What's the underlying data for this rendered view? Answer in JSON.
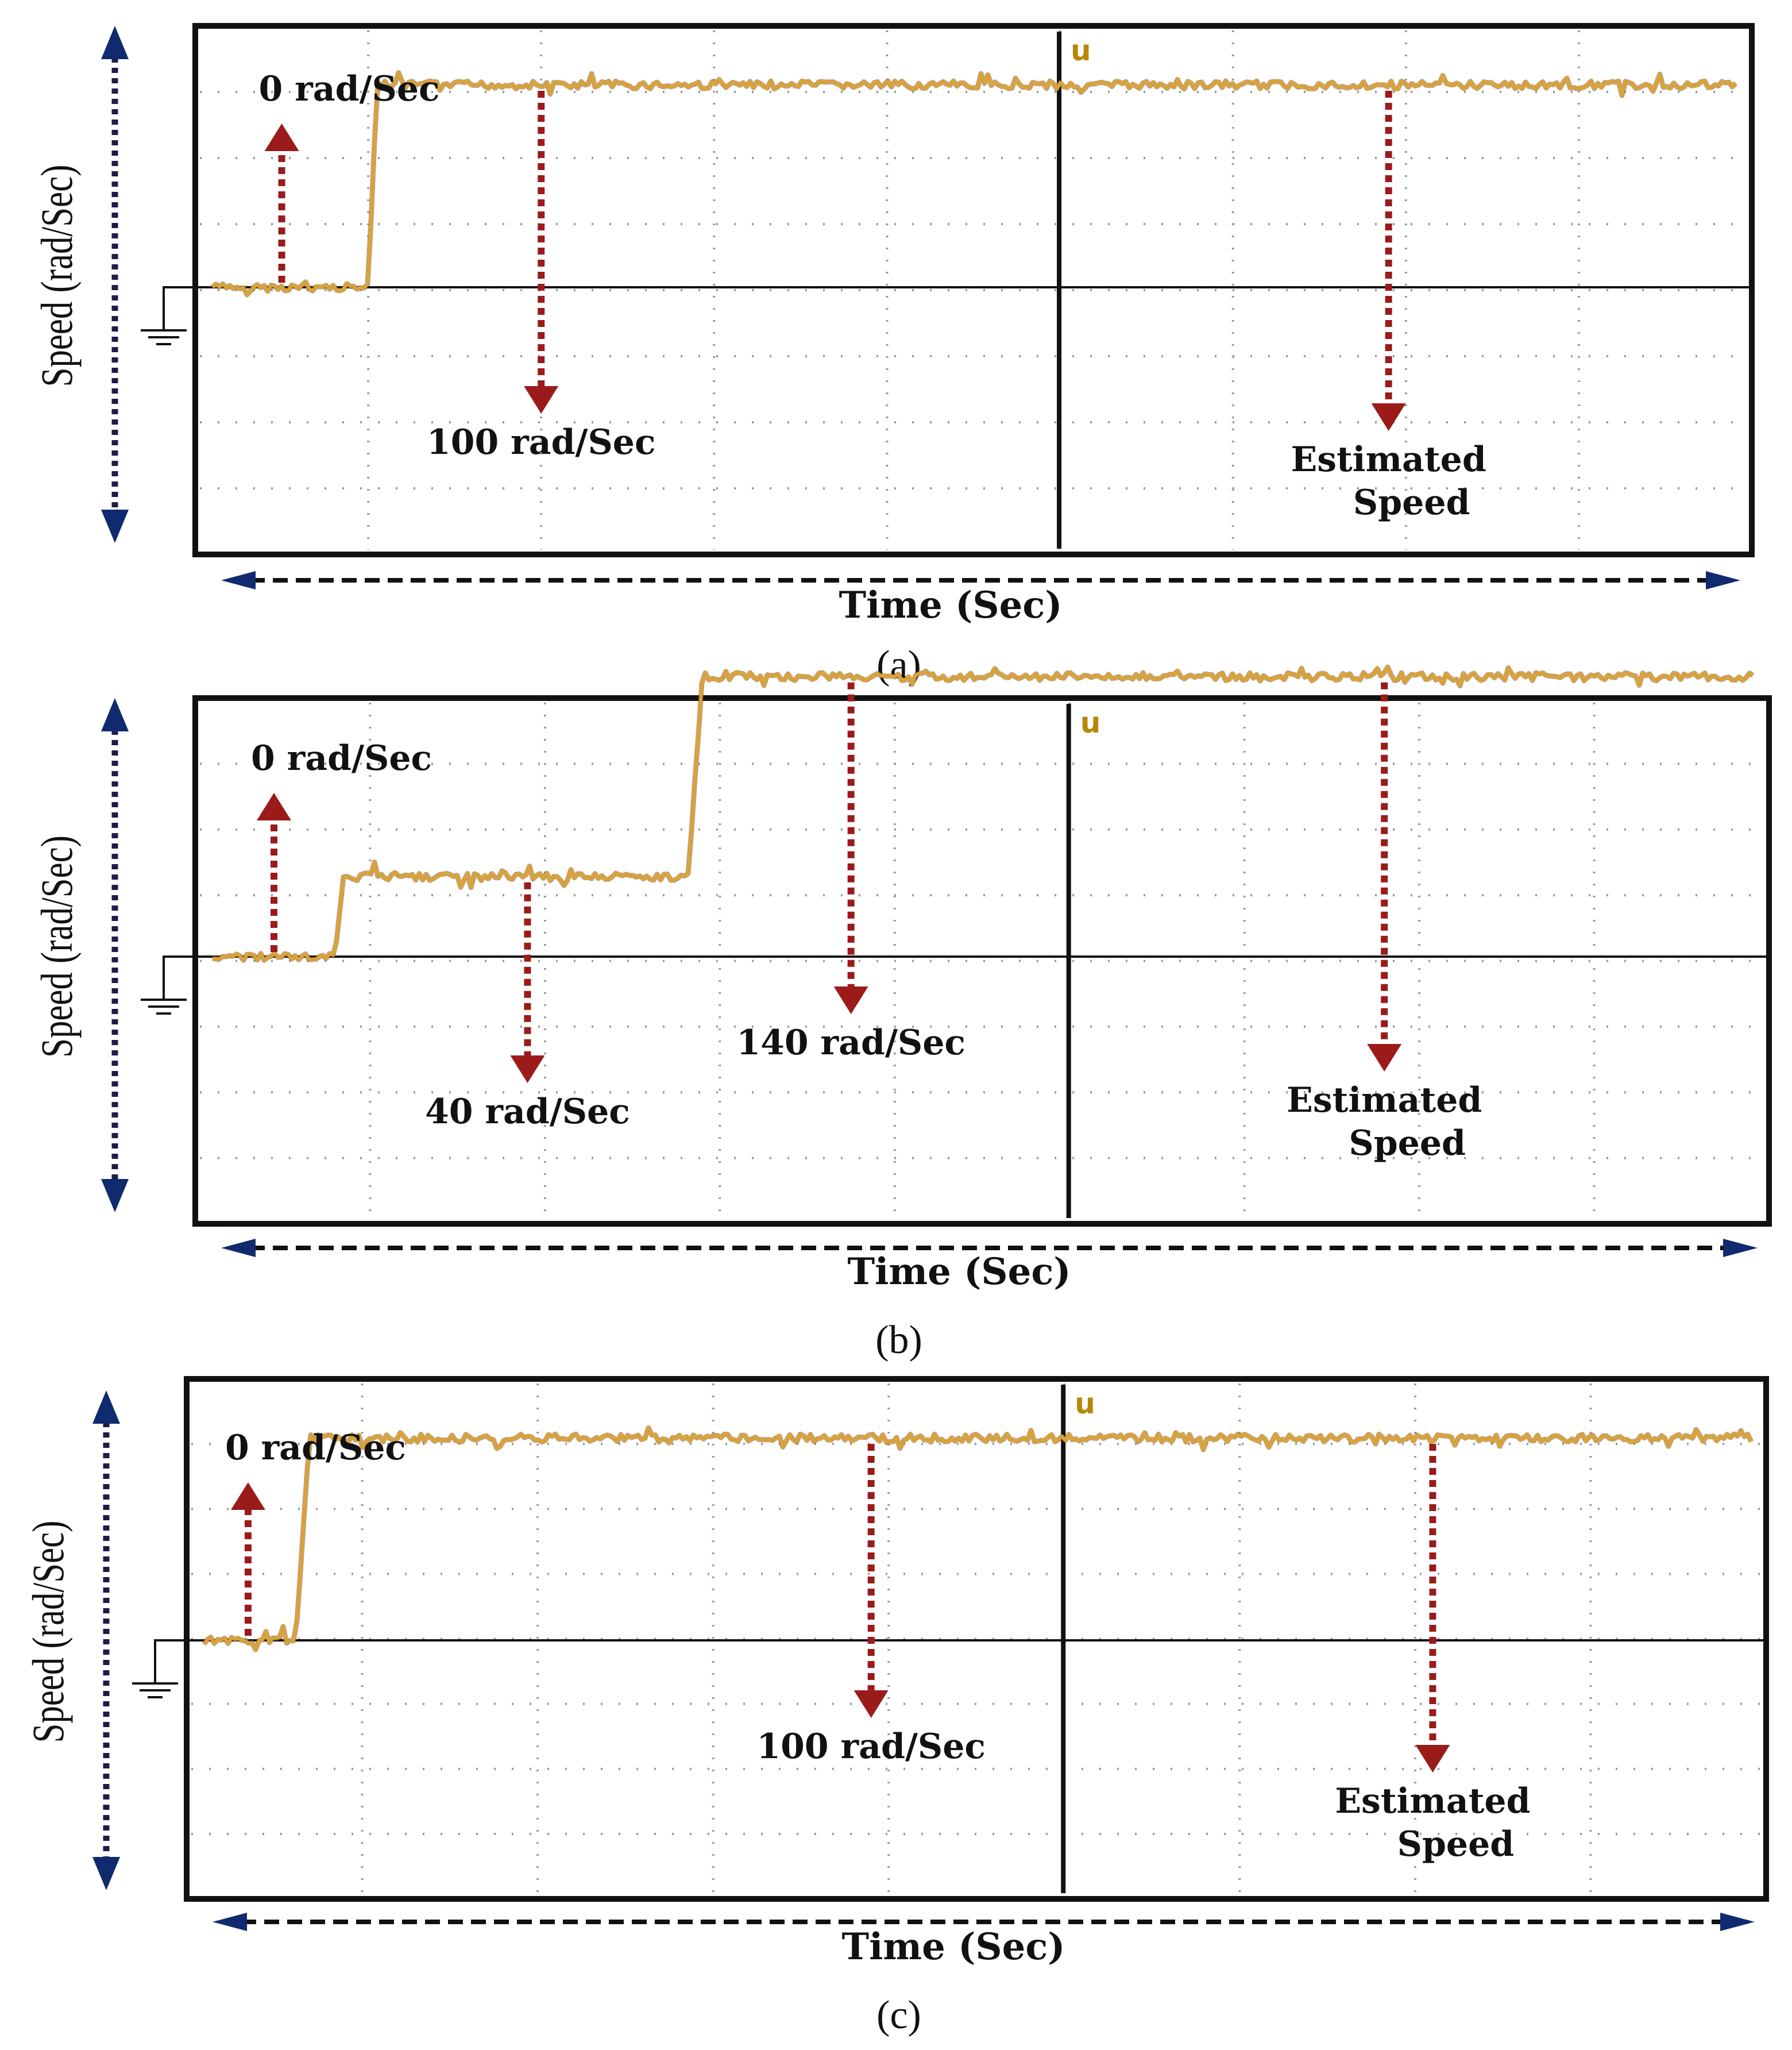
{
  "colors": {
    "trace": "#d9a23a",
    "trace_edge": "#8a5a1a",
    "frame": "#111111",
    "grid_dot": "#9a9a9a",
    "annotation_arrow": "#9b1b1b",
    "axis_arrow_dots": "#1c1c4a",
    "axis_arrow_head": "#0f2a6e",
    "trigger_marker": "#b8860b"
  },
  "icons": {
    "ground": "ground-symbol-icon",
    "trigger": "trigger-marker-icon"
  },
  "chart_data": [
    {
      "type": "line",
      "panel_label": "(a)",
      "xlabel": "Time (Sec)",
      "ylabel": "Speed (rad/Sec)",
      "trigger_marker": "u",
      "grid": true,
      "x_divisions": 9,
      "y_divisions": 8,
      "series": [
        {
          "x": [
            0,
            1.0,
            1.05,
            9
          ],
          "y": [
            0,
            0,
            100,
            100
          ]
        }
      ],
      "annotations": [
        {
          "text": "0 rad/Sec",
          "direction": "up",
          "x": 0.5,
          "y": 0
        },
        {
          "text": "100 rad/Sec",
          "direction": "down",
          "x": 2.0,
          "y": 100
        },
        {
          "text": "Estimated",
          "text2": "Speed",
          "direction": "down",
          "x": 6.9,
          "y": 100
        }
      ]
    },
    {
      "type": "line",
      "panel_label": "(b)",
      "xlabel": "Time (Sec)",
      "ylabel": "Speed (rad/Sec)",
      "trigger_marker": "u",
      "grid": true,
      "x_divisions": 9,
      "y_divisions": 8,
      "series": [
        {
          "x": [
            0,
            0.8,
            0.85,
            2.82,
            2.9,
            9
          ],
          "y": [
            0,
            0,
            40,
            40,
            140,
            140
          ]
        }
      ],
      "annotations": [
        {
          "text": "0 rad/Sec",
          "direction": "up",
          "x": 0.45,
          "y": 0
        },
        {
          "text": "40 rad/Sec",
          "direction": "down",
          "x": 1.9,
          "y": 40
        },
        {
          "text": "140 rad/Sec",
          "direction": "down",
          "x": 3.75,
          "y": 140
        },
        {
          "text": "Estimated",
          "text2": "Speed",
          "direction": "down",
          "x": 6.8,
          "y": 140
        }
      ]
    },
    {
      "type": "line",
      "panel_label": "(c)",
      "xlabel": "Time (Sec)",
      "ylabel": "Speed (rad/Sec)",
      "trigger_marker": "u",
      "grid": true,
      "x_divisions": 9,
      "y_divisions": 8,
      "series": [
        {
          "x": [
            0,
            0.62,
            0.7,
            9
          ],
          "y": [
            0,
            0,
            100,
            100
          ]
        }
      ],
      "annotations": [
        {
          "text": "0 rad/Sec",
          "direction": "up",
          "x": 0.35,
          "y": 0
        },
        {
          "text": "100 rad/Sec",
          "direction": "down",
          "x": 3.9,
          "y": 100
        },
        {
          "text": "Estimated",
          "text2": "Speed",
          "direction": "down",
          "x": 7.1,
          "y": 100
        }
      ]
    }
  ]
}
